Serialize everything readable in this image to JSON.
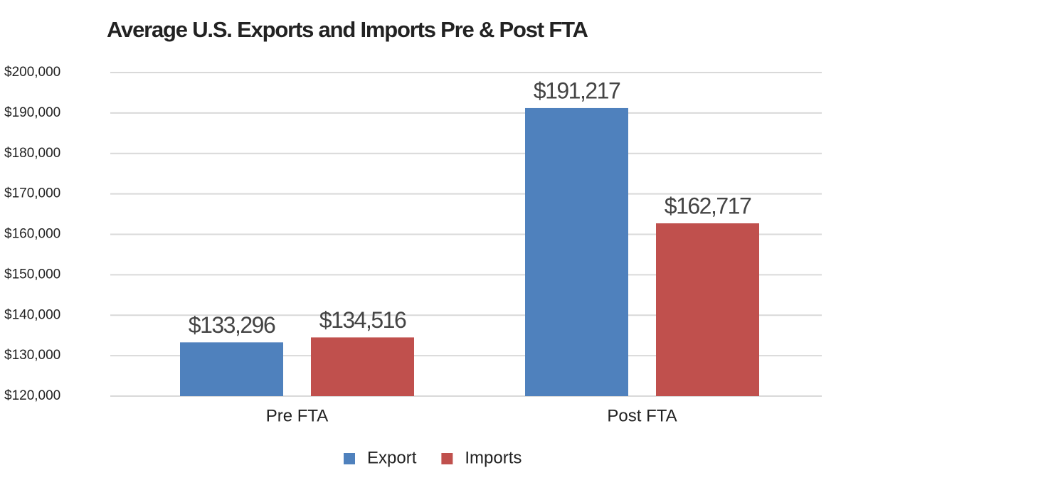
{
  "chart_data": {
    "type": "bar",
    "title": "Average U.S. Exports and Imports Pre & Post FTA",
    "categories": [
      "Pre FTA",
      "Post FTA"
    ],
    "series": [
      {
        "name": "Export",
        "color": "#4f81bd",
        "values": [
          133296,
          191217
        ],
        "value_labels": [
          "$133,296",
          "$191,217"
        ]
      },
      {
        "name": "Imports",
        "color": "#c0504d",
        "values": [
          134516,
          162717
        ],
        "value_labels": [
          "$134,516",
          "$162,717"
        ]
      }
    ],
    "ylim": [
      120000,
      200000
    ],
    "yticks": [
      {
        "value": 120000,
        "label": "$120,000"
      },
      {
        "value": 130000,
        "label": "$130,000"
      },
      {
        "value": 140000,
        "label": "$140,000"
      },
      {
        "value": 150000,
        "label": "$150,000"
      },
      {
        "value": 160000,
        "label": "$160,000"
      },
      {
        "value": 170000,
        "label": "$170,000"
      },
      {
        "value": 180000,
        "label": "$180,000"
      },
      {
        "value": 190000,
        "label": "$190,000"
      },
      {
        "value": 200000,
        "label": "$200,000"
      }
    ],
    "grid": true,
    "legend": "bottom"
  }
}
